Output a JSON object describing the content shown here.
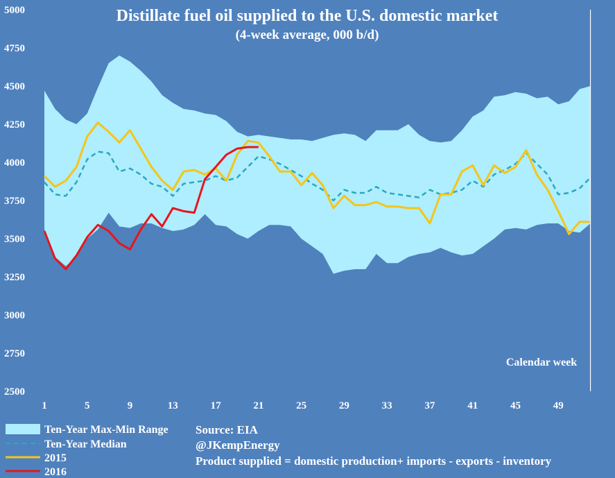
{
  "chart_data": {
    "type": "line",
    "title": "Distillate fuel oil supplied to the U.S. domestic market",
    "subtitle": "(4-week average, 000 b/d)",
    "xlabel": "Calendar week",
    "ylabel": "",
    "xlim": [
      1,
      53
    ],
    "ylim": [
      2500,
      5000
    ],
    "x_ticks": [
      1,
      5,
      9,
      13,
      17,
      21,
      25,
      29,
      33,
      37,
      41,
      45,
      49
    ],
    "y_ticks": [
      2500,
      2750,
      3000,
      3250,
      3500,
      3750,
      4000,
      4250,
      4500,
      4750,
      5000
    ],
    "grid": false,
    "legend_position": "bottom-left",
    "colors": {
      "background": "#4f81bd",
      "range": "#aeeeff",
      "median": "#2aa7c0",
      "y2015": "#f5c518",
      "y2016": "#e8151b"
    },
    "range": {
      "name": "Ten-Year Max-Min Range",
      "max": [
        4470,
        4350,
        4280,
        4250,
        4320,
        4490,
        4650,
        4700,
        4660,
        4600,
        4530,
        4440,
        4390,
        4350,
        4340,
        4320,
        4310,
        4270,
        4200,
        4170,
        4180,
        4170,
        4160,
        4150,
        4150,
        4140,
        4160,
        4180,
        4190,
        4180,
        4140,
        4210,
        4210,
        4210,
        4250,
        4180,
        4140,
        4130,
        4140,
        4210,
        4300,
        4340,
        4430,
        4440,
        4460,
        4450,
        4420,
        4430,
        4380,
        4400,
        4480,
        4500
      ],
      "min": [
        3560,
        3380,
        3320,
        3380,
        3500,
        3560,
        3670,
        3580,
        3570,
        3600,
        3600,
        3570,
        3550,
        3560,
        3590,
        3660,
        3590,
        3580,
        3530,
        3500,
        3550,
        3590,
        3590,
        3580,
        3500,
        3450,
        3400,
        3270,
        3290,
        3300,
        3300,
        3400,
        3340,
        3340,
        3380,
        3400,
        3410,
        3440,
        3410,
        3390,
        3400,
        3450,
        3500,
        3560,
        3570,
        3560,
        3590,
        3600,
        3600,
        3550,
        3540,
        3600
      ]
    },
    "series": [
      {
        "name": "Ten-Year Median",
        "x": [
          1,
          2,
          3,
          4,
          5,
          6,
          7,
          8,
          9,
          10,
          11,
          12,
          13,
          14,
          15,
          16,
          17,
          18,
          19,
          20,
          21,
          22,
          23,
          24,
          25,
          26,
          27,
          28,
          29,
          30,
          31,
          32,
          33,
          34,
          35,
          36,
          37,
          38,
          39,
          40,
          41,
          42,
          43,
          44,
          45,
          46,
          47,
          48,
          49,
          50,
          51,
          52
        ],
        "values": [
          3870,
          3790,
          3780,
          3870,
          4020,
          4070,
          4060,
          3940,
          3960,
          3920,
          3860,
          3840,
          3780,
          3860,
          3870,
          3880,
          3910,
          3880,
          3900,
          3970,
          4040,
          4020,
          3990,
          3950,
          3910,
          3860,
          3820,
          3750,
          3820,
          3800,
          3800,
          3840,
          3800,
          3790,
          3780,
          3770,
          3820,
          3790,
          3800,
          3820,
          3880,
          3840,
          3920,
          3950,
          3990,
          4060,
          3990,
          3920,
          3790,
          3800,
          3830,
          3900
        ]
      },
      {
        "name": "2015",
        "x": [
          1,
          2,
          3,
          4,
          5,
          6,
          7,
          8,
          9,
          10,
          11,
          12,
          13,
          14,
          15,
          16,
          17,
          18,
          19,
          20,
          21,
          22,
          23,
          24,
          25,
          26,
          27,
          28,
          29,
          30,
          31,
          32,
          33,
          34,
          35,
          36,
          37,
          38,
          39,
          40,
          41,
          42,
          43,
          44,
          45,
          46,
          47,
          48,
          49,
          50,
          51,
          52
        ],
        "values": [
          3910,
          3840,
          3880,
          3970,
          4170,
          4260,
          4200,
          4130,
          4210,
          4090,
          3970,
          3880,
          3820,
          3940,
          3950,
          3920,
          3960,
          3880,
          4050,
          4140,
          4130,
          4040,
          3940,
          3940,
          3850,
          3930,
          3850,
          3700,
          3780,
          3720,
          3720,
          3740,
          3710,
          3710,
          3700,
          3700,
          3600,
          3790,
          3790,
          3940,
          3980,
          3850,
          3980,
          3930,
          3970,
          4080,
          3920,
          3820,
          3680,
          3530,
          3610,
          3610
        ]
      },
      {
        "name": "2016",
        "x": [
          1,
          2,
          3,
          4,
          5,
          6,
          7,
          8,
          9,
          10,
          11,
          12,
          13,
          14,
          15,
          16,
          17,
          18,
          19,
          20,
          21
        ],
        "values": [
          3550,
          3370,
          3300,
          3390,
          3510,
          3590,
          3550,
          3470,
          3430,
          3560,
          3660,
          3580,
          3700,
          3680,
          3670,
          3890,
          3970,
          4050,
          4090,
          4100,
          4100
        ]
      }
    ],
    "annotations": {
      "source": "Source: EIA",
      "handle": "@JKempEnergy",
      "note": "Product supplied = domestic production+ imports - exports - inventory"
    }
  }
}
